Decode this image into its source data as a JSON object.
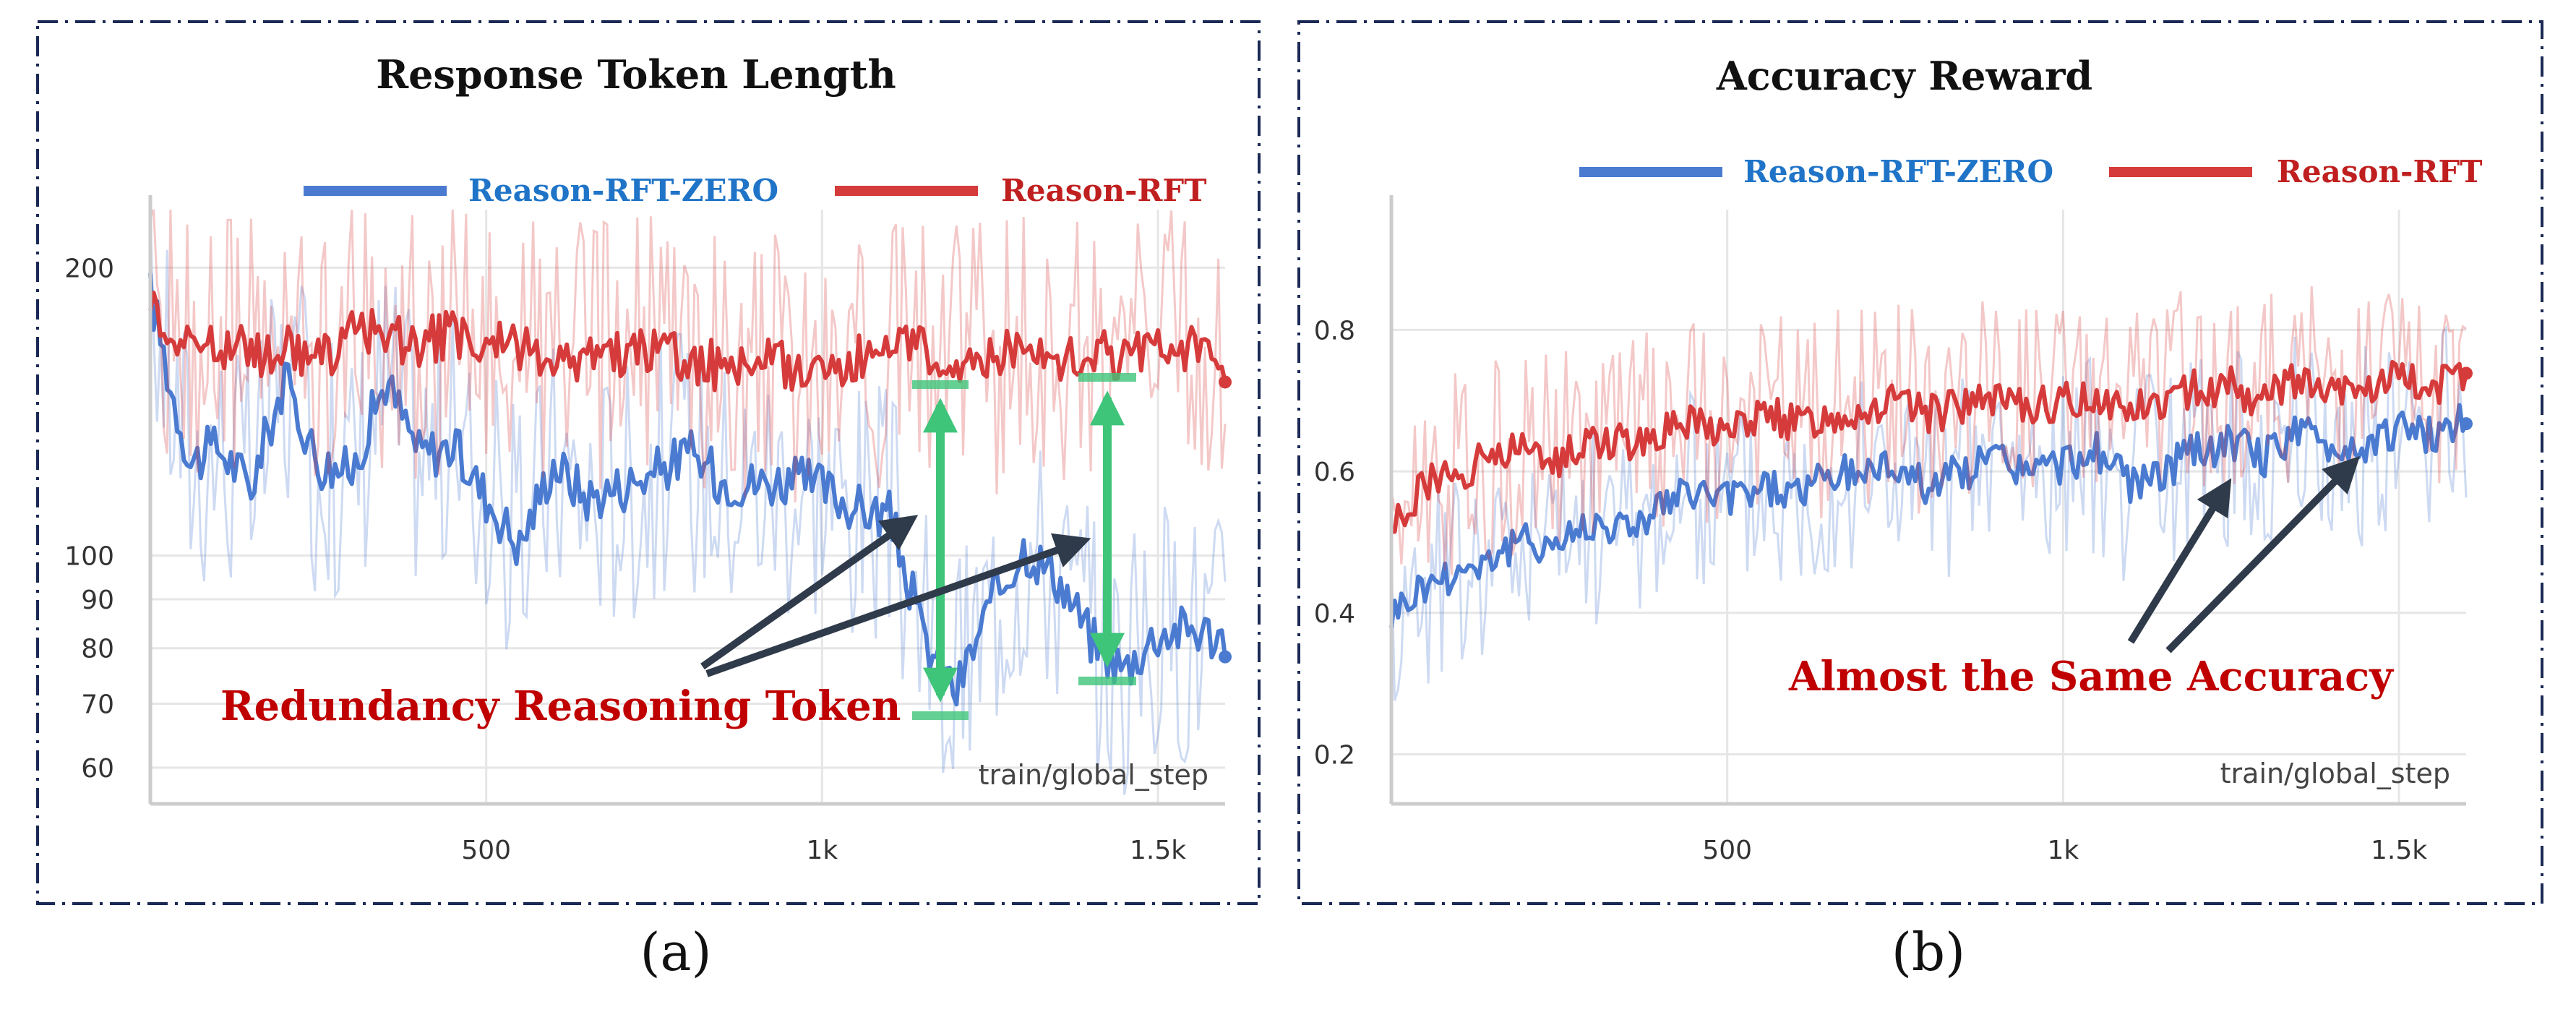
{
  "colors": {
    "zero": "#4a7bd1",
    "rft": "#d63b3b",
    "legend_zero_text": "#1f74c8",
    "legend_rft_text": "#c01f1f",
    "annotation": "#c00000",
    "arrow": "#2f3a4a",
    "bracket": "#3fc57a",
    "frame": "#1b2a55",
    "grid": "#e6e6e6"
  },
  "panels": [
    {
      "caption": "(a)",
      "xlabel": "train/global_step",
      "annotation": "Redundancy Reasoning Token",
      "legend_zero": "Reason-RFT-ZERO",
      "legend_rft": "Reason-RFT"
    },
    {
      "caption": "(b)",
      "xlabel": "train/global_step",
      "annotation": "Almost the Same Accuracy",
      "legend_zero": "Reason-RFT-ZERO",
      "legend_rft": "Reason-RFT"
    }
  ],
  "chart_data": [
    {
      "type": "line",
      "title": "Response Token Length",
      "xlabel": "train/global_step",
      "ylabel": "",
      "yscale": "log",
      "xlim": [
        0,
        1600
      ],
      "ylim": [
        55,
        230
      ],
      "x_ticks": [
        500,
        1000,
        1500
      ],
      "x_tick_labels": [
        "500",
        "1k",
        "1.5k"
      ],
      "y_ticks": [
        60,
        70,
        80,
        90,
        100,
        200
      ],
      "y_tick_labels": [
        "60",
        "70",
        "80",
        "90",
        "100",
        "200"
      ],
      "grid": true,
      "legend": "top-right",
      "series": [
        {
          "name": "Reason-RFT-ZERO",
          "color": "#4a7bd1",
          "x": [
            0,
            30,
            60,
            100,
            150,
            200,
            250,
            300,
            350,
            400,
            450,
            500,
            550,
            600,
            650,
            700,
            750,
            800,
            850,
            900,
            950,
            1000,
            1050,
            1100,
            1150,
            1200,
            1250,
            1300,
            1350,
            1400,
            1450,
            1500,
            1550,
            1600
          ],
          "values": [
            188,
            150,
            125,
            130,
            118,
            152,
            125,
            122,
            152,
            128,
            130,
            115,
            102,
            125,
            115,
            118,
            122,
            128,
            120,
            119,
            120,
            118,
            112,
            110,
            82,
            72,
            88,
            102,
            95,
            82,
            76,
            83,
            84,
            82
          ]
        },
        {
          "name": "Reason-RFT",
          "color": "#d63b3b",
          "x": [
            0,
            30,
            60,
            100,
            150,
            200,
            250,
            300,
            350,
            400,
            450,
            500,
            550,
            600,
            650,
            700,
            750,
            800,
            850,
            900,
            950,
            1000,
            1050,
            1100,
            1150,
            1200,
            1250,
            1300,
            1350,
            1400,
            1450,
            1500,
            1550,
            1600
          ],
          "values": [
            188,
            170,
            165,
            168,
            162,
            165,
            160,
            170,
            172,
            166,
            170,
            164,
            166,
            162,
            160,
            163,
            165,
            160,
            158,
            160,
            158,
            157,
            160,
            162,
            165,
            162,
            160,
            163,
            162,
            164,
            160,
            166,
            163,
            155
          ]
        }
      ]
    },
    {
      "type": "line",
      "title": "Accuracy Reward",
      "xlabel": "train/global_step",
      "ylabel": "",
      "xlim": [
        0,
        1600
      ],
      "ylim": [
        0.13,
        0.97
      ],
      "x_ticks": [
        500,
        1000,
        1500
      ],
      "x_tick_labels": [
        "500",
        "1k",
        "1.5k"
      ],
      "y_ticks": [
        0.2,
        0.4,
        0.6,
        0.8
      ],
      "y_tick_labels": [
        "0.2",
        "0.4",
        "0.6",
        "0.8"
      ],
      "grid": true,
      "legend": "top-right",
      "series": [
        {
          "name": "Reason-RFT-ZERO",
          "color": "#4a7bd1",
          "x": [
            0,
            50,
            100,
            150,
            200,
            250,
            300,
            350,
            400,
            450,
            500,
            550,
            600,
            650,
            700,
            750,
            800,
            850,
            900,
            950,
            1000,
            1050,
            1100,
            1150,
            1200,
            1250,
            1300,
            1350,
            1400,
            1450,
            1500,
            1550,
            1600
          ],
          "values": [
            0.4,
            0.44,
            0.46,
            0.48,
            0.5,
            0.5,
            0.53,
            0.52,
            0.55,
            0.57,
            0.56,
            0.58,
            0.57,
            0.59,
            0.6,
            0.61,
            0.58,
            0.6,
            0.62,
            0.6,
            0.61,
            0.63,
            0.58,
            0.6,
            0.63,
            0.64,
            0.62,
            0.66,
            0.63,
            0.64,
            0.66,
            0.65,
            0.67
          ]
        },
        {
          "name": "Reason-RFT",
          "color": "#d63b3b",
          "x": [
            0,
            50,
            100,
            150,
            200,
            250,
            300,
            350,
            400,
            450,
            500,
            550,
            600,
            650,
            700,
            750,
            800,
            850,
            900,
            950,
            1000,
            1050,
            1100,
            1150,
            1200,
            1250,
            1300,
            1350,
            1400,
            1450,
            1500,
            1550,
            1600
          ],
          "values": [
            0.52,
            0.58,
            0.6,
            0.62,
            0.63,
            0.62,
            0.65,
            0.64,
            0.66,
            0.67,
            0.66,
            0.68,
            0.67,
            0.68,
            0.69,
            0.7,
            0.68,
            0.69,
            0.7,
            0.69,
            0.7,
            0.71,
            0.69,
            0.7,
            0.72,
            0.72,
            0.7,
            0.73,
            0.71,
            0.72,
            0.73,
            0.72,
            0.73
          ]
        }
      ]
    }
  ]
}
